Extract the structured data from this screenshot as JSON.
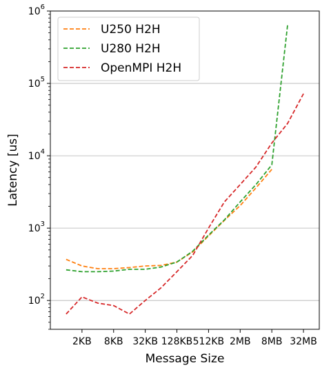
{
  "chart_data": {
    "type": "line",
    "xlabel": "Message Size",
    "ylabel": "Latency [us]",
    "y_scale": "log",
    "ylim": [
      40,
      1000000
    ],
    "y_ticks": [
      {
        "value": 100,
        "base": "10",
        "exp": "2"
      },
      {
        "value": 1000,
        "base": "10",
        "exp": "3"
      },
      {
        "value": 10000,
        "base": "10",
        "exp": "4"
      },
      {
        "value": 100000,
        "base": "10",
        "exp": "5"
      },
      {
        "value": 1000000,
        "base": "10",
        "exp": "6"
      }
    ],
    "x_ticks": [
      "2KB",
      "8KB",
      "32KB",
      "128KB",
      "512KB",
      "2MB",
      "8MB",
      "32MB"
    ],
    "x_tick_positions": [
      2,
      4,
      6,
      8,
      10,
      12,
      14,
      16
    ],
    "x_range": [
      0,
      17
    ],
    "grid": "y-major",
    "legend_position": "top-left",
    "series": [
      {
        "name": "U250 H2H",
        "color": "#ff7f0e",
        "x": [
          1,
          2,
          3,
          4,
          5,
          6,
          7,
          8,
          9,
          10,
          11,
          12,
          13,
          14
        ],
        "values": [
          370,
          300,
          275,
          275,
          285,
          300,
          305,
          340,
          470,
          780,
          1280,
          2050,
          3600,
          6500
        ]
      },
      {
        "name": "U280 H2H",
        "color": "#2ca02c",
        "x": [
          1,
          2,
          3,
          4,
          5,
          6,
          7,
          8,
          9,
          10,
          11,
          12,
          13,
          14,
          15
        ],
        "values": [
          265,
          250,
          250,
          255,
          270,
          270,
          290,
          340,
          480,
          800,
          1300,
          2300,
          4000,
          7500,
          650000
        ]
      },
      {
        "name": "OpenMPI H2H",
        "color": "#d62728",
        "x": [
          1,
          2,
          3,
          4,
          5,
          6,
          7,
          8,
          9,
          10,
          11,
          12,
          13,
          14,
          15,
          16
        ],
        "values": [
          65,
          112,
          92,
          85,
          65,
          100,
          150,
          250,
          420,
          1000,
          2300,
          4000,
          7000,
          15000,
          28000,
          72000
        ]
      }
    ]
  }
}
